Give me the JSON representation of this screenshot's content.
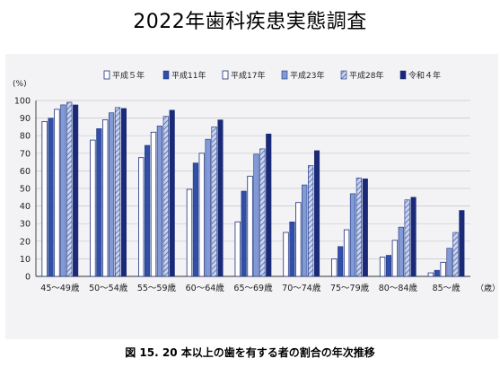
{
  "header": {
    "title": "2022年歯科疾患実態調査"
  },
  "figure": {
    "caption": "図 15.  20 本以上の歯を有する者の割合の年次推移"
  },
  "chart_data": {
    "type": "bar",
    "categories": [
      "45～49歳",
      "50～54歳",
      "55～59歳",
      "60～64歳",
      "65～69歳",
      "70～74歳",
      "75～79歳",
      "80～84歳",
      "85～歳"
    ],
    "series": [
      {
        "name": "平成５年",
        "values": [
          88,
          77.5,
          67.5,
          49.5,
          31,
          25,
          10,
          11,
          2
        ],
        "style": "outline"
      },
      {
        "name": "平成11年",
        "values": [
          90,
          84,
          74.5,
          64.5,
          48.5,
          31,
          17,
          12,
          3.5
        ],
        "style": "solid-mid"
      },
      {
        "name": "平成17年",
        "values": [
          95,
          89,
          82,
          70,
          57,
          42,
          26.5,
          20.5,
          8
        ],
        "style": "outline"
      },
      {
        "name": "平成23年",
        "values": [
          97.5,
          93,
          85.5,
          78,
          69.5,
          52,
          47,
          28,
          16
        ],
        "style": "light"
      },
      {
        "name": "平成28年",
        "values": [
          99,
          96,
          91,
          85,
          72.5,
          63,
          56,
          43.5,
          25
        ],
        "style": "hatch"
      },
      {
        "name": "令和４年",
        "values": [
          97.5,
          95.5,
          94.5,
          89,
          81,
          71.5,
          55.5,
          45,
          37.5
        ],
        "style": "dark"
      }
    ],
    "ylabel": "(%)",
    "xunit": "（歳）",
    "ylim": [
      0,
      100
    ],
    "yticks": [
      0,
      10,
      20,
      30,
      40,
      50,
      60,
      70,
      80,
      90,
      100
    ],
    "grid": true,
    "legend_position": "top"
  },
  "colors": {
    "panel_bg": "#f3f3f5",
    "grid": "#c8c8cc",
    "axis": "#333333",
    "outline_fill": "#ffffff",
    "solid_mid": "#2f4fa8",
    "light": "#7f9ad6",
    "hatch_bg": "#c7d3ef",
    "hatch_line": "#3a56a6",
    "dark": "#1a2a78",
    "stroke": "#1d2f7a"
  }
}
